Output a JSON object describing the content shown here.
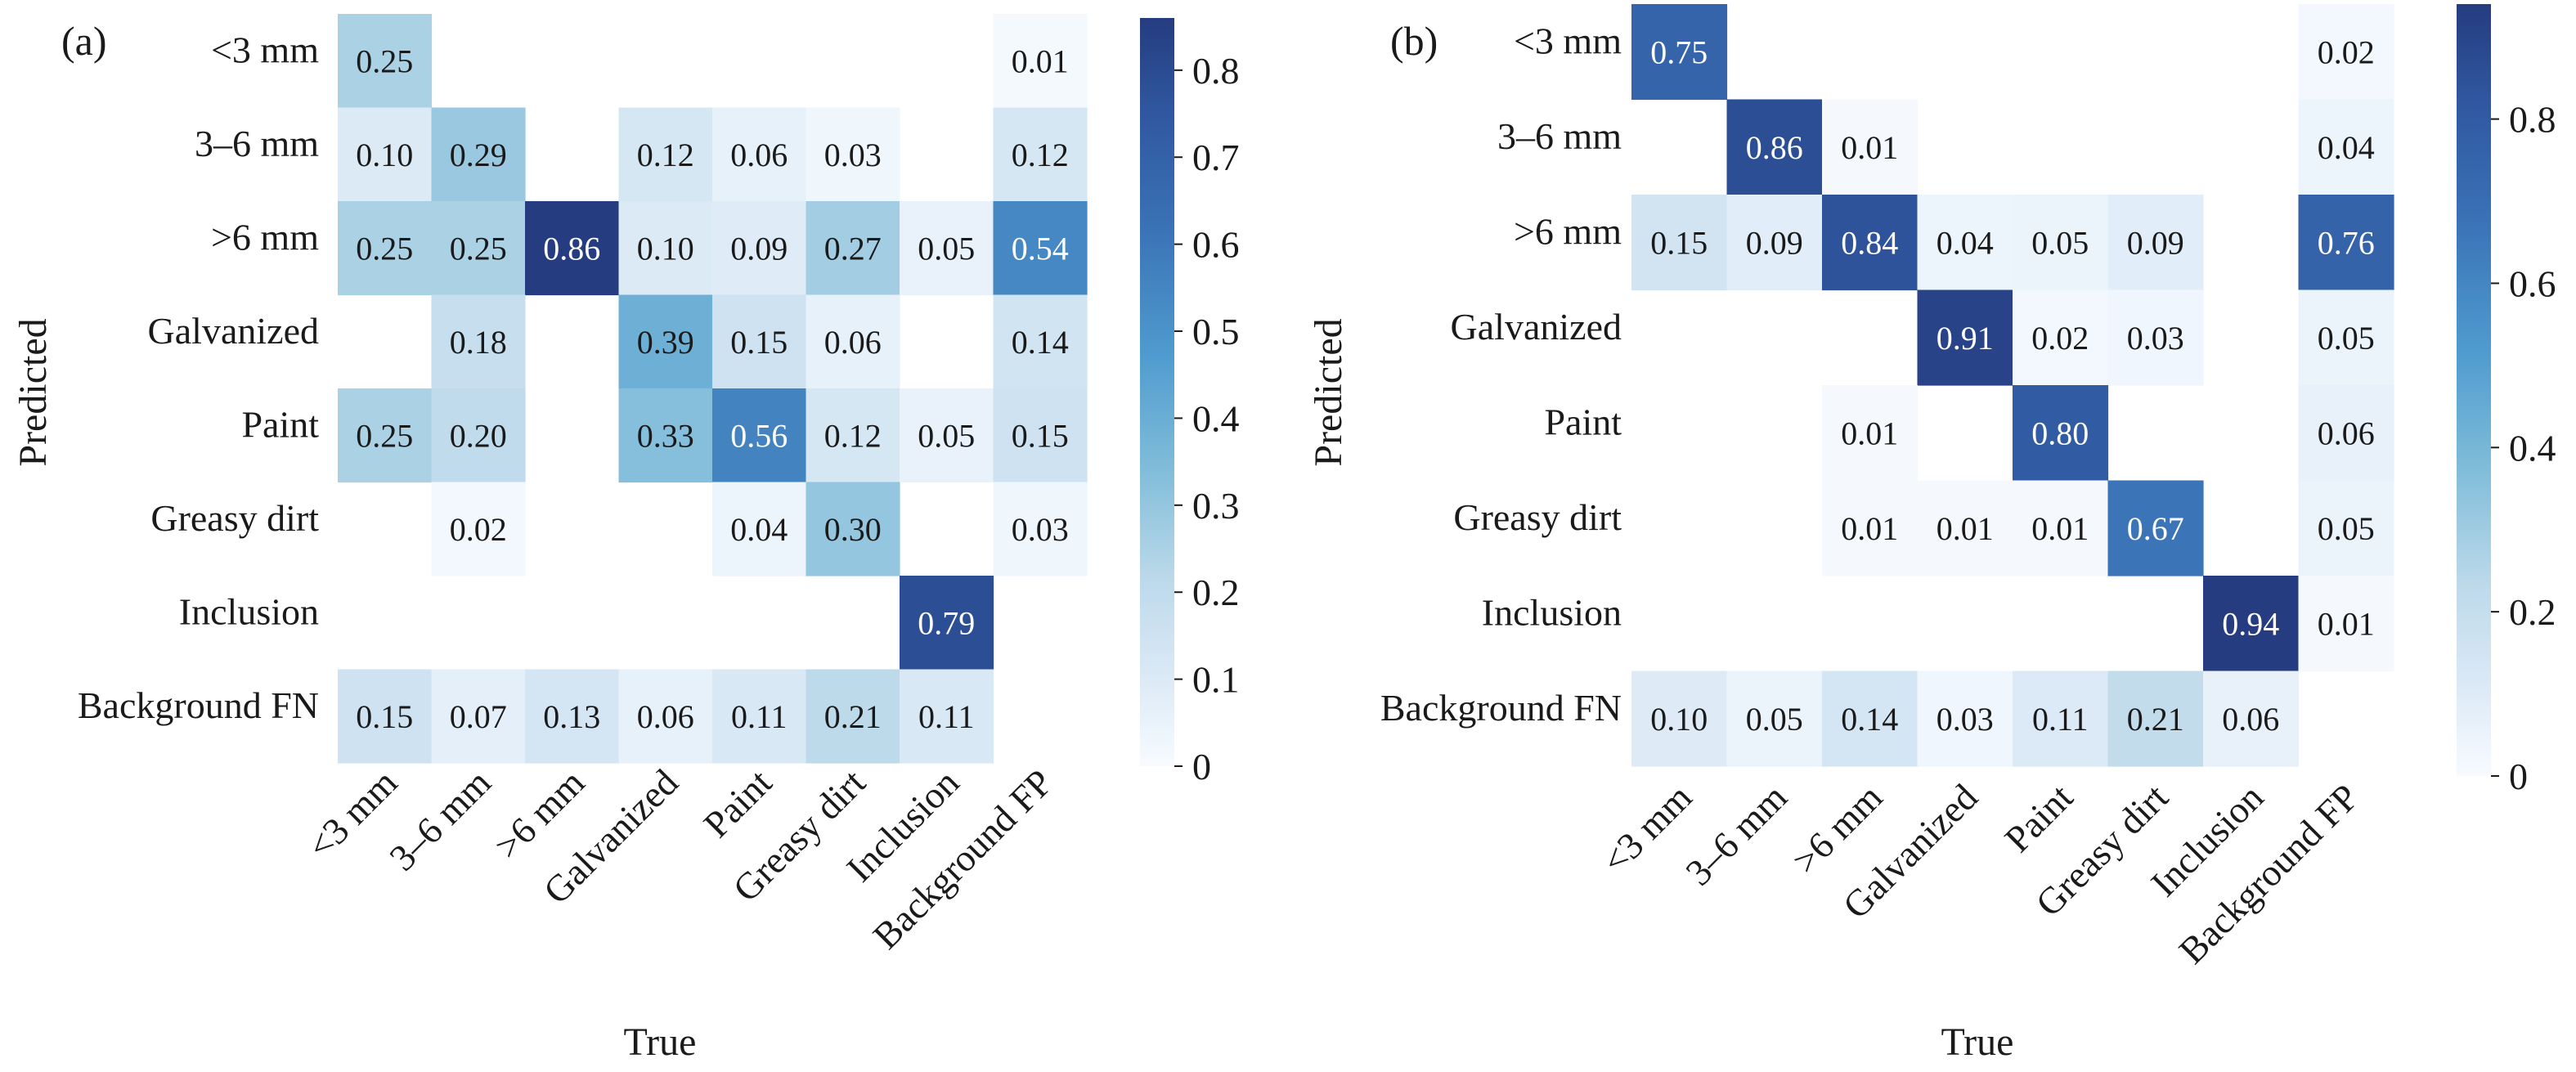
{
  "chart_data": [
    {
      "type": "heatmap",
      "panel_label": "(a)",
      "xlabel": "True",
      "ylabel": "Predicted",
      "rows": [
        "<3 mm",
        "3–6 mm",
        ">6 mm",
        "Galvanized",
        "Paint",
        "Greasy dirt",
        "Inclusion",
        "Background FN"
      ],
      "columns": [
        "<3 mm",
        "3–6 mm",
        ">6 mm",
        "Galvanized",
        "Paint",
        "Greasy dirt",
        "Inclusion",
        "Background FP"
      ],
      "values": [
        [
          0.25,
          null,
          null,
          null,
          null,
          null,
          null,
          0.01
        ],
        [
          0.1,
          0.29,
          null,
          0.12,
          0.06,
          0.03,
          null,
          0.12
        ],
        [
          0.25,
          0.25,
          0.86,
          0.1,
          0.09,
          0.27,
          0.05,
          0.54
        ],
        [
          null,
          0.18,
          null,
          0.39,
          0.15,
          0.06,
          null,
          0.14
        ],
        [
          0.25,
          0.2,
          null,
          0.33,
          0.56,
          0.12,
          0.05,
          0.15
        ],
        [
          null,
          0.02,
          null,
          null,
          0.04,
          0.3,
          null,
          0.03
        ],
        [
          null,
          null,
          null,
          null,
          null,
          null,
          0.79,
          null
        ],
        [
          0.15,
          0.07,
          0.13,
          0.06,
          0.11,
          0.21,
          0.11,
          null
        ]
      ],
      "colorbar": {
        "range": [
          0,
          0.86
        ],
        "ticks": [
          0,
          0.1,
          0.2,
          0.3,
          0.4,
          0.5,
          0.6,
          0.7,
          0.8
        ],
        "tick_labels": [
          "0",
          "0.1",
          "0.2",
          "0.3",
          "0.4",
          "0.5",
          "0.6",
          "0.7",
          "0.8"
        ]
      },
      "colormap": "Blues",
      "colors": {
        "low": "#f7fbff",
        "high": "#253c80"
      }
    },
    {
      "type": "heatmap",
      "panel_label": "(b)",
      "xlabel": "True",
      "ylabel": "Predicted",
      "rows": [
        "<3 mm",
        "3–6 mm",
        ">6 mm",
        "Galvanized",
        "Paint",
        "Greasy dirt",
        "Inclusion",
        "Background FN"
      ],
      "columns": [
        "<3 mm",
        "3–6 mm",
        ">6 mm",
        "Galvanized",
        "Paint",
        "Greasy dirt",
        "Inclusion",
        "Background FP"
      ],
      "values": [
        [
          0.75,
          null,
          null,
          null,
          null,
          null,
          null,
          0.02
        ],
        [
          null,
          0.86,
          0.01,
          null,
          null,
          null,
          null,
          0.04
        ],
        [
          0.15,
          0.09,
          0.84,
          0.04,
          0.05,
          0.09,
          null,
          0.76
        ],
        [
          null,
          null,
          null,
          0.91,
          0.02,
          0.03,
          null,
          0.05
        ],
        [
          null,
          null,
          0.01,
          null,
          0.8,
          null,
          null,
          0.06
        ],
        [
          null,
          null,
          0.01,
          0.01,
          0.01,
          0.67,
          null,
          0.05
        ],
        [
          null,
          null,
          null,
          null,
          null,
          null,
          0.94,
          0.01
        ],
        [
          0.1,
          0.05,
          0.14,
          0.03,
          0.11,
          0.21,
          0.06,
          null
        ]
      ],
      "colorbar": {
        "range": [
          0,
          0.94
        ],
        "ticks": [
          0,
          0.2,
          0.4,
          0.6,
          0.8
        ],
        "tick_labels": [
          "0",
          "0.2",
          "0.4",
          "0.6",
          "0.8"
        ]
      },
      "colormap": "Blues",
      "colors": {
        "low": "#f7fbff",
        "high": "#253c80"
      }
    }
  ]
}
